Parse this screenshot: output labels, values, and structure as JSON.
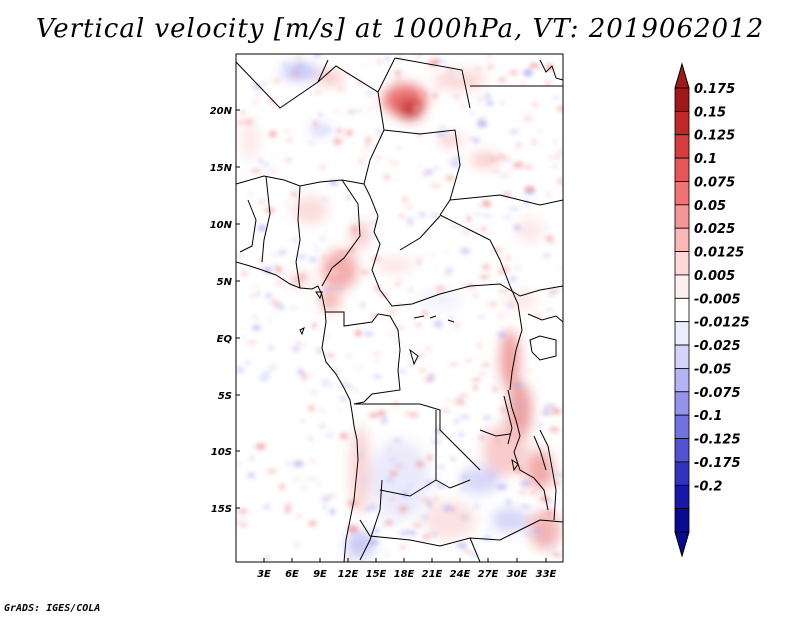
{
  "title": "Vertical velocity [m/s] at 1000hPa, VT: 2019062012",
  "credit": "GrADS: IGES/COLA",
  "map": {
    "lat_labels": [
      "20N",
      "15N",
      "10N",
      "5N",
      "EQ",
      "5S",
      "10S",
      "15S"
    ],
    "lon_labels": [
      "3E",
      "6E",
      "9E",
      "12E",
      "15E",
      "18E",
      "21E",
      "24E",
      "27E",
      "30E",
      "33E"
    ]
  },
  "colorbar": {
    "levels": [
      "0.175",
      "0.15",
      "0.125",
      "0.1",
      "0.075",
      "0.05",
      "0.025",
      "0.0125",
      "0.005",
      "-0.005",
      "-0.0125",
      "-0.025",
      "-0.05",
      "-0.075",
      "-0.1",
      "-0.125",
      "-0.175",
      "-0.2"
    ],
    "colors": [
      "#a01818",
      "#c02828",
      "#d83c3c",
      "#e65656",
      "#f07474",
      "#f69696",
      "#fab8b8",
      "#fcd8d8",
      "#fff0f0",
      "#ffffff",
      "#ececfc",
      "#d4d4f8",
      "#b4b4f4",
      "#9494ec",
      "#7272e0",
      "#5252d2",
      "#3232c0",
      "#1818a8",
      "#0a0a90"
    ],
    "top_arrow_color": "#a01818",
    "bottom_arrow_color": "#0a0a90"
  }
}
